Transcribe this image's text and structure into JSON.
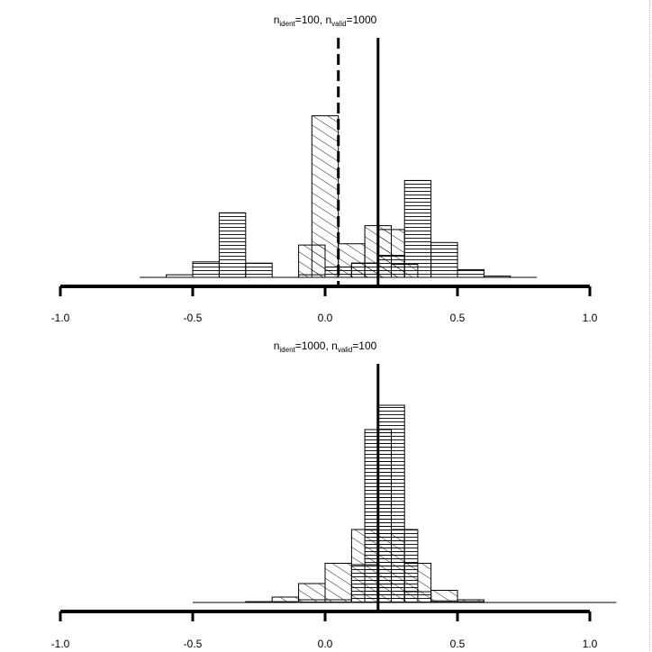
{
  "chart_data": [
    {
      "type": "histogram",
      "title": {
        "n1": "n",
        "s1": "ident",
        "eq1": "=100, ",
        "n2": "n",
        "s2": "valid",
        "eq2": "=1000"
      },
      "xlim": [
        -1.0,
        1.0
      ],
      "xticks": [
        -1.0,
        -0.5,
        0.0,
        0.5,
        1.0
      ],
      "xtick_labels": [
        "-1.0",
        "-0.5",
        "0.0",
        "0.5",
        "1.0"
      ],
      "bin_width": 0.1,
      "baseline_line": [
        -0.7,
        0.8
      ],
      "reference_lines": [
        {
          "x": 0.05,
          "style": "dashed"
        },
        {
          "x": 0.2,
          "style": "solid"
        }
      ],
      "series": [
        {
          "pattern": "horizontal",
          "bins": [
            {
              "left": -0.6,
              "height": 0.01
            },
            {
              "left": -0.5,
              "height": 0.06
            },
            {
              "left": -0.4,
              "height": 0.25
            },
            {
              "left": -0.3,
              "height": 0.055
            },
            {
              "left": -0.1,
              "height": 0.01
            },
            {
              "left": 0.0,
              "height": 0.04
            },
            {
              "left": 0.1,
              "height": 0.055
            },
            {
              "left": 0.2,
              "height": 0.085
            },
            {
              "left": 0.3,
              "height": 0.375
            },
            {
              "left": 0.4,
              "height": 0.135
            },
            {
              "left": 0.5,
              "height": 0.03
            },
            {
              "left": 0.6,
              "height": 0.005
            }
          ]
        },
        {
          "pattern": "diagonal",
          "bins": [
            {
              "left": -0.1,
              "height": 0.125
            },
            {
              "left": -0.05,
              "height": 0.625
            },
            {
              "left": 0.05,
              "height": 0.13
            },
            {
              "left": 0.1,
              "height": 0.055
            },
            {
              "left": 0.15,
              "height": 0.2
            },
            {
              "left": 0.2,
              "height": 0.185
            },
            {
              "left": 0.25,
              "height": 0.05
            }
          ]
        }
      ]
    },
    {
      "type": "histogram",
      "title": {
        "n1": "n",
        "s1": "ident",
        "eq1": "=1000, ",
        "n2": "n",
        "s2": "valid",
        "eq2": "=100"
      },
      "xlim": [
        -1.0,
        1.0
      ],
      "xticks": [
        -1.0,
        -0.5,
        0.0,
        0.5,
        1.0
      ],
      "xtick_labels": [
        "-1.0",
        "-0.5",
        "0.0",
        "0.5",
        "1.0"
      ],
      "bin_width": 0.1,
      "baseline_line": [
        -0.5,
        1.1
      ],
      "reference_lines": [
        {
          "x": 0.2,
          "style": "solid"
        }
      ],
      "series": [
        {
          "pattern": "horizontal",
          "bins": [
            {
              "left": -0.3,
              "height": 0.003
            },
            {
              "left": -0.2,
              "height": 0.003
            },
            {
              "left": -0.1,
              "height": 0.01
            },
            {
              "left": 0.0,
              "height": 0.01
            },
            {
              "left": 0.1,
              "height": 0.14
            },
            {
              "left": 0.15,
              "height": 0.64
            },
            {
              "left": 0.2,
              "height": 0.73
            },
            {
              "left": 0.25,
              "height": 0.27
            },
            {
              "left": 0.3,
              "height": 0.04
            },
            {
              "left": 0.4,
              "height": 0.006
            },
            {
              "left": 0.5,
              "height": 0.003
            }
          ]
        },
        {
          "pattern": "diagonal",
          "bins": [
            {
              "left": -0.2,
              "height": 0.02
            },
            {
              "left": -0.1,
              "height": 0.07
            },
            {
              "left": 0.0,
              "height": 0.145
            },
            {
              "left": 0.1,
              "height": 0.27
            },
            {
              "left": 0.2,
              "height": 0.255
            },
            {
              "left": 0.3,
              "height": 0.145
            },
            {
              "left": 0.4,
              "height": 0.045
            },
            {
              "left": 0.5,
              "height": 0.01
            }
          ]
        }
      ]
    }
  ]
}
